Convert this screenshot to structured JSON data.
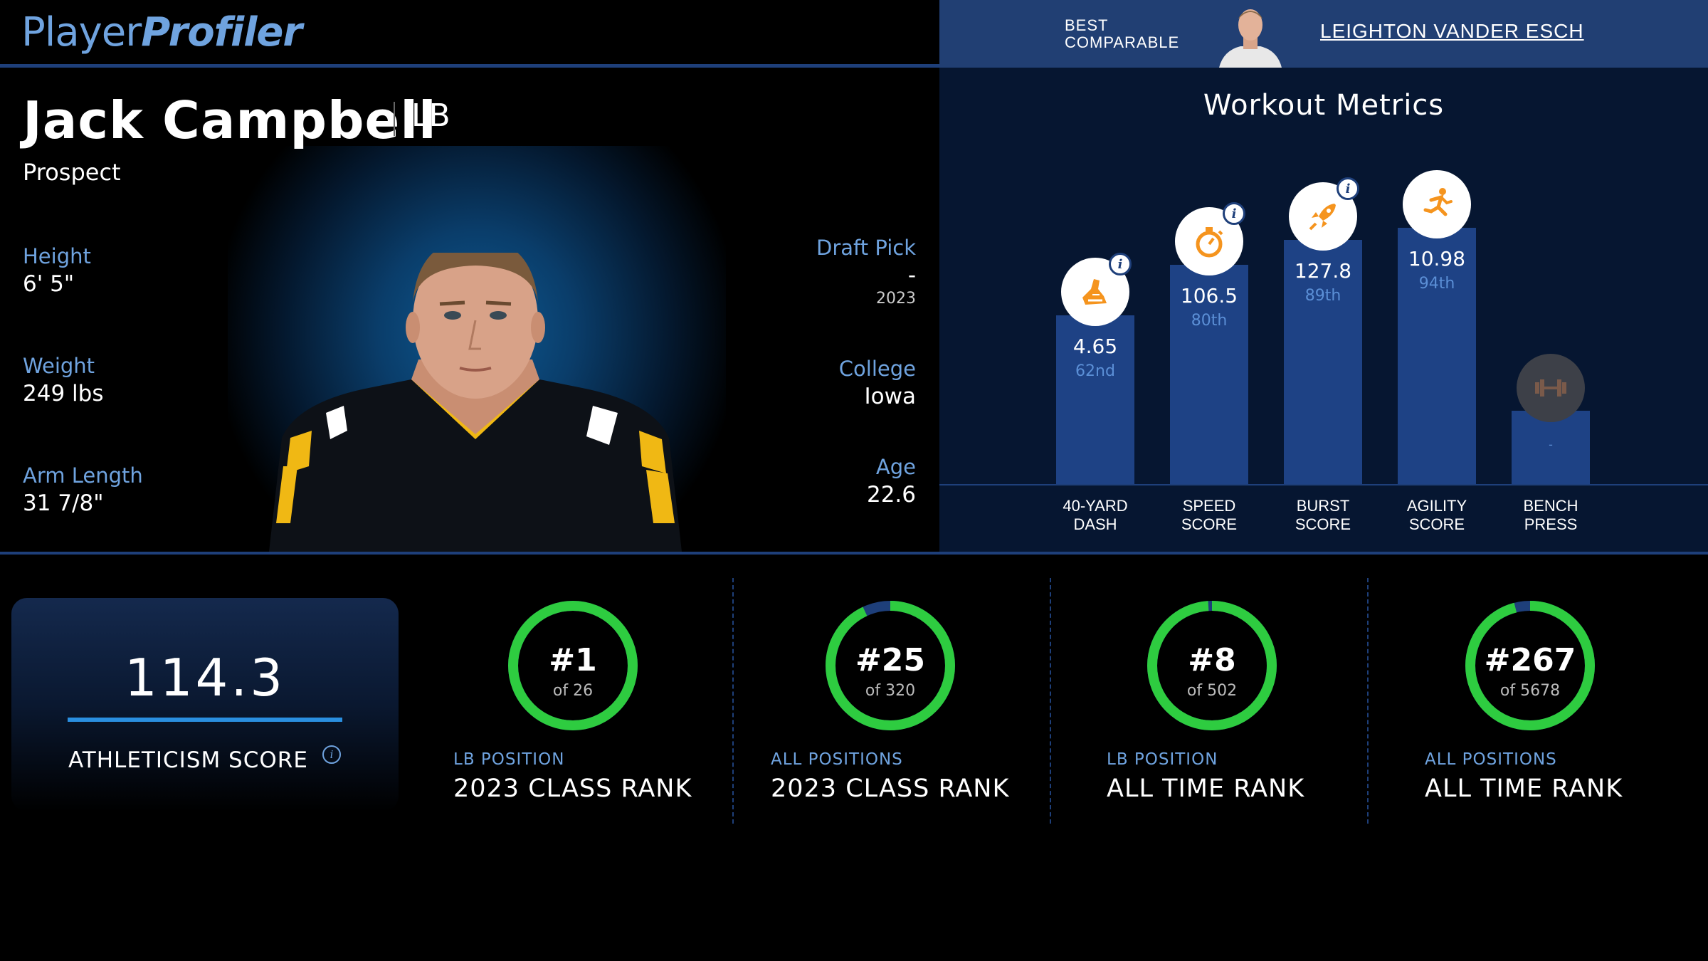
{
  "brand": {
    "part1": "Player",
    "part2": "Profiler"
  },
  "comparable": {
    "label": "BEST COMPARABLE",
    "name": "LEIGHTON VANDER ESCH"
  },
  "player": {
    "name": "Jack Campbell",
    "position": "LB",
    "status": "Prospect",
    "height_label": "Height",
    "height": "6' 5\"",
    "weight_label": "Weight",
    "weight": "249 lbs",
    "arm_label": "Arm Length",
    "arm": "31 7/8\"",
    "draft_label": "Draft Pick",
    "draft": "-",
    "draft_year": "2023",
    "college_label": "College",
    "college": "Iowa",
    "age_label": "Age",
    "age": "22.6"
  },
  "workout": {
    "title": "Workout Metrics",
    "bars": [
      {
        "label": "40-YARD DASH",
        "value": "4.65",
        "percentile": "62nd",
        "level": 0.62,
        "icon": "shoe-icon"
      },
      {
        "label": "SPEED SCORE",
        "value": "106.5",
        "percentile": "80th",
        "level": 0.8,
        "icon": "stopwatch-icon"
      },
      {
        "label": "BURST SCORE",
        "value": "127.8",
        "percentile": "89th",
        "level": 0.89,
        "icon": "rocket-icon"
      },
      {
        "label": "AGILITY SCORE",
        "value": "10.98",
        "percentile": "94th",
        "level": 0.94,
        "icon": "runner-icon"
      },
      {
        "label": "BENCH PRESS",
        "value": "",
        "percentile": "-",
        "level": 0.25,
        "icon": "dumbbell-icon"
      }
    ],
    "accent": "#f5941e"
  },
  "athleticism": {
    "score": "114.3",
    "label": "ATHLETICISM SCORE"
  },
  "ranks": [
    {
      "rank": "#1",
      "of": "of 26",
      "small": "LB POSITION",
      "big": "2023 CLASS RANK",
      "fill": 1.0
    },
    {
      "rank": "#25",
      "of": "of 320",
      "small": "ALL POSITIONS",
      "big": "2023 CLASS RANK",
      "fill": 0.93
    },
    {
      "rank": "#8",
      "of": "of 502",
      "small": "LB POSITION",
      "big": "ALL TIME RANK",
      "fill": 0.99
    },
    {
      "rank": "#267",
      "of": "of 5678",
      "small": "ALL POSITIONS",
      "big": "ALL TIME RANK",
      "fill": 0.96
    }
  ],
  "colors": {
    "ring": "#2ecc40",
    "ring_track": "#1e3f7a",
    "label_blue": "#6fa3df"
  }
}
